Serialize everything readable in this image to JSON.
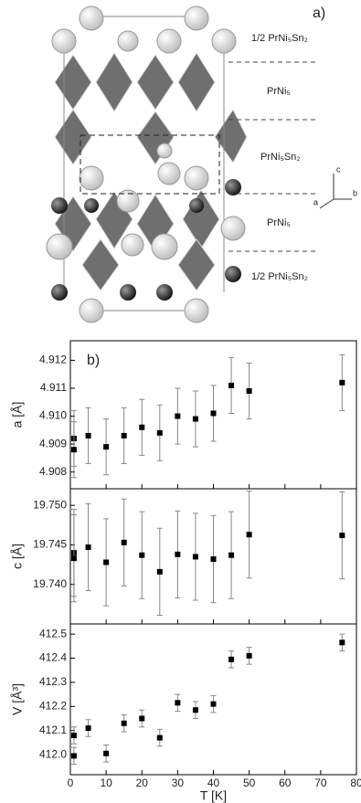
{
  "structure": {
    "panel_label": "a)",
    "layers": [
      "1/2 PrNi₅Sn₂",
      "PrNi₅",
      "PrNi₅Sn₂",
      "PrNi₅",
      "1/2 PrNi₅Sn₂"
    ],
    "axes": [
      "c",
      "a",
      "b"
    ]
  },
  "chart_data": [
    {
      "type": "scatter",
      "panel_label": "b)",
      "ylabel": "a [Å]",
      "x": [
        1,
        1,
        5,
        10,
        15,
        20,
        25,
        30,
        35,
        40,
        45,
        50,
        76
      ],
      "values": [
        4.9092,
        4.9088,
        4.9093,
        4.9089,
        4.9093,
        4.9096,
        4.9094,
        4.91,
        4.9099,
        4.9101,
        4.9111,
        4.9109,
        4.9112
      ],
      "errors": [
        0.001,
        0.001,
        0.001,
        0.001,
        0.001,
        0.001,
        0.001,
        0.001,
        0.001,
        0.001,
        0.001,
        0.001,
        0.001
      ],
      "xlim": [
        0,
        80
      ],
      "ylim": [
        4.9074,
        4.9127
      ],
      "yticks": [
        4.908,
        4.909,
        {
          "value": 4.91,
          "label": "4.910"
        },
        4.911,
        4.912
      ],
      "color": "#000000"
    },
    {
      "type": "scatter",
      "ylabel": "c [Å]",
      "x": [
        1,
        1,
        5,
        10,
        15,
        20,
        25,
        30,
        35,
        40,
        45,
        50,
        76
      ],
      "values": [
        19.744,
        19.7433,
        19.7447,
        19.7428,
        19.7453,
        19.7437,
        19.7416,
        19.7438,
        19.7435,
        19.7432,
        19.7437,
        19.7463,
        19.7462
      ],
      "errors": [
        0.0055,
        0.0055,
        0.0055,
        0.0055,
        0.0055,
        0.0055,
        0.0055,
        0.0055,
        0.0055,
        0.0055,
        0.0055,
        0.0055,
        0.0055
      ],
      "xlim": [
        0,
        80
      ],
      "ylim": [
        19.735,
        19.7521
      ],
      "yticks": [
        {
          "value": 19.74,
          "label": "19.740"
        },
        19.745,
        {
          "value": 19.75,
          "label": "19.750"
        }
      ],
      "color": "#000000"
    },
    {
      "type": "scatter",
      "ylabel": "V [Å³]",
      "xlabel": "T [K]",
      "x": [
        1,
        1,
        5,
        10,
        15,
        20,
        25,
        30,
        35,
        40,
        45,
        50,
        76
      ],
      "values": [
        412.08,
        411.995,
        412.11,
        412.005,
        412.13,
        412.15,
        412.07,
        412.215,
        412.185,
        412.21,
        412.395,
        412.41,
        412.465
      ],
      "errors": [
        0.035,
        0.035,
        0.035,
        0.035,
        0.035,
        0.035,
        0.035,
        0.035,
        0.035,
        0.035,
        0.035,
        0.035,
        0.035
      ],
      "xlim": [
        0,
        80
      ],
      "ylim": [
        411.917,
        412.542
      ],
      "yticks": [
        {
          "value": 412,
          "label": "412.0"
        },
        412.1,
        412.2,
        412.3,
        412.4,
        412.5
      ],
      "xticks": [
        0,
        10,
        20,
        30,
        40,
        50,
        60,
        70,
        80
      ],
      "color": "#000000"
    }
  ]
}
